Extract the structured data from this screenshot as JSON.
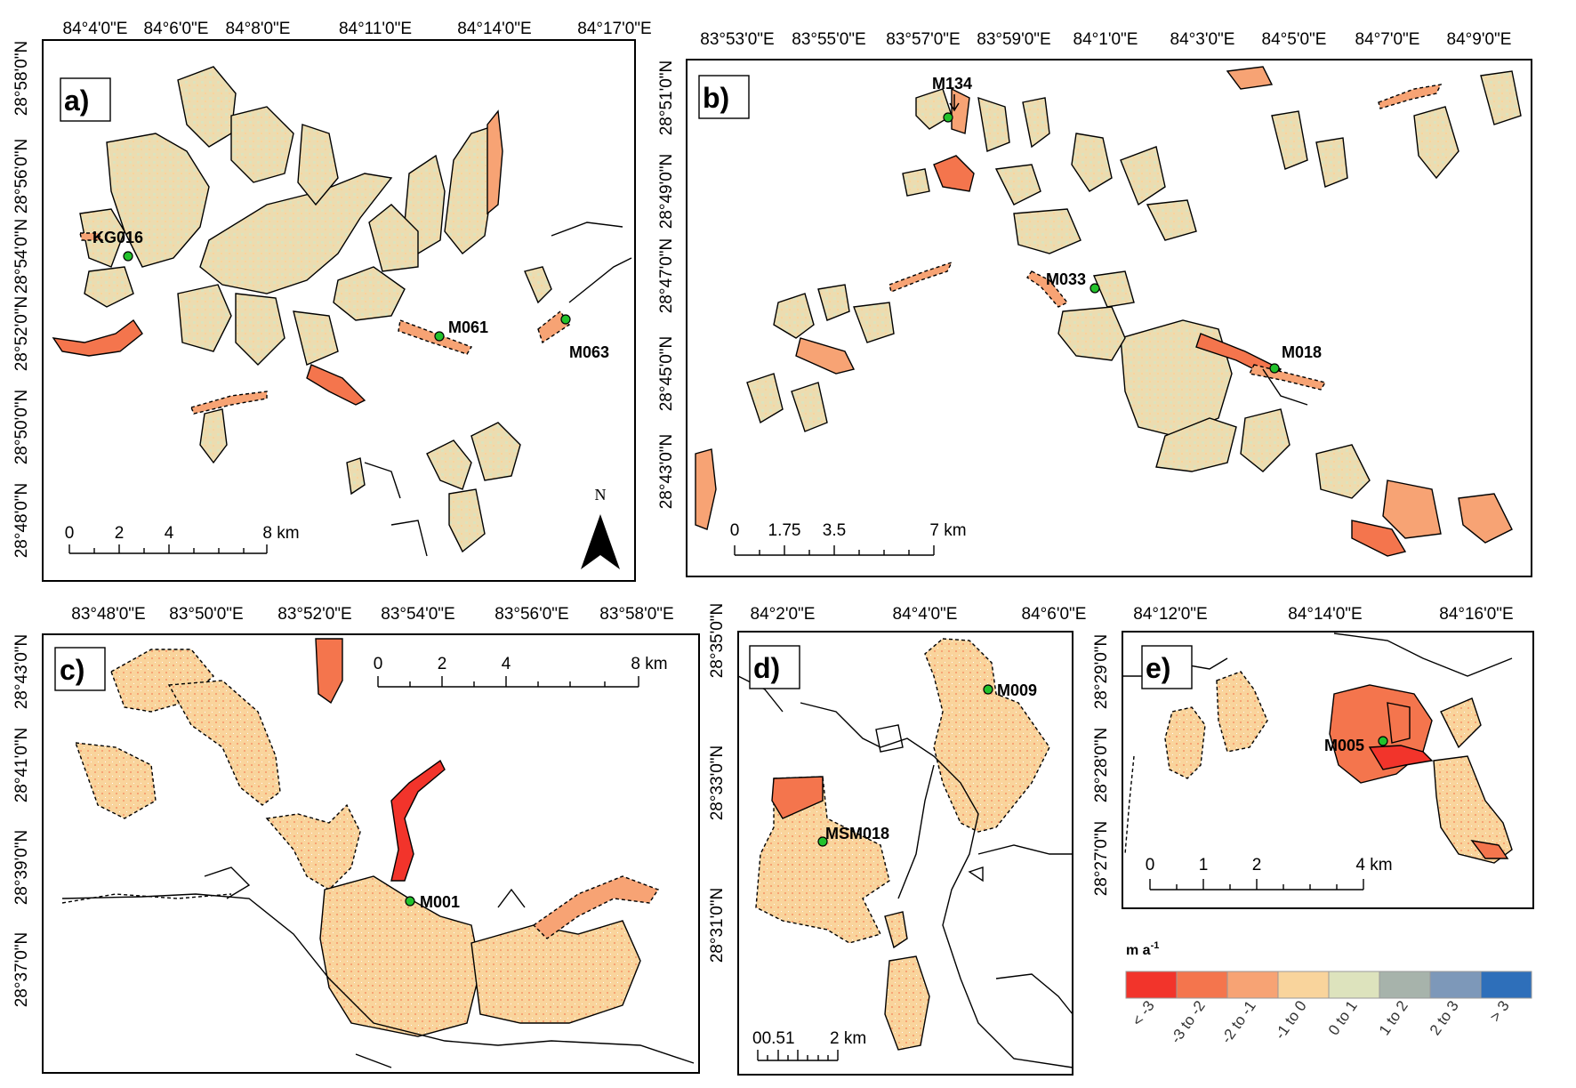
{
  "colors": {
    "lt_m3": "#f2342b",
    "m3_m2": "#f4754d",
    "m2_m1": "#f7a374",
    "m1_0": "#f9d49c",
    "p0_1": "#dde3bd",
    "p1_2": "#a7b3ab",
    "p2_3": "#7d98b9",
    "gt_3": "#2e6fba"
  },
  "panels": {
    "a": {
      "label": "a)",
      "lon_ticks": [
        "84°4'0\"E",
        "84°6'0\"E",
        "84°8'0\"E",
        "84°11'0\"E",
        "84°14'0\"E",
        "84°17'0\"E"
      ],
      "lat_ticks": [
        "28°58'0\"N",
        "28°56'0\"N",
        "28°54'0\"N",
        "28°52'0\"N",
        "28°50'0\"N",
        "28°48'0\"N"
      ],
      "sites": [
        "KG016",
        "M061",
        "M063"
      ],
      "scale": [
        "0",
        "2",
        "4",
        "8 km"
      ],
      "north": "N"
    },
    "b": {
      "label": "b)",
      "lon_ticks": [
        "83°53'0\"E",
        "83°55'0\"E",
        "83°57'0\"E",
        "83°59'0\"E",
        "84°1'0\"E",
        "84°3'0\"E",
        "84°5'0\"E",
        "84°7'0\"E",
        "84°9'0\"E"
      ],
      "lat_ticks": [
        "28°51'0\"N",
        "28°49'0\"N",
        "28°47'0\"N",
        "28°45'0\"N",
        "28°43'0\"N"
      ],
      "sites": [
        "M134",
        "M033",
        "M018"
      ],
      "scale": [
        "0",
        "1.75",
        "3.5",
        "7 km"
      ]
    },
    "c": {
      "label": "c)",
      "lon_ticks": [
        "83°48'0\"E",
        "83°50'0\"E",
        "83°52'0\"E",
        "83°54'0\"E",
        "83°56'0\"E",
        "83°58'0\"E"
      ],
      "lat_ticks": [
        "28°43'0\"N",
        "28°41'0\"N",
        "28°39'0\"N",
        "28°37'0\"N"
      ],
      "sites": [
        "M001"
      ],
      "scale": [
        "0",
        "2",
        "4",
        "8 km"
      ]
    },
    "d": {
      "label": "d)",
      "lon_ticks": [
        "84°2'0\"E",
        "84°4'0\"E",
        "84°6'0\"E"
      ],
      "lat_ticks": [
        "28°35'0\"N",
        "28°33'0\"N",
        "28°31'0\"N"
      ],
      "sites": [
        "M009",
        "MSM018"
      ],
      "scale": [
        "00.51",
        "2 km"
      ]
    },
    "e": {
      "label": "e)",
      "lon_ticks": [
        "84°12'0\"E",
        "84°14'0\"E",
        "84°16'0\"E"
      ],
      "lat_ticks": [
        "28°29'0\"N",
        "28°28'0\"N",
        "28°27'0\"N"
      ],
      "sites": [
        "M005"
      ],
      "scale": [
        "0",
        "1",
        "2",
        "4 km"
      ]
    }
  },
  "legend": {
    "unit": "m a",
    "unit_sup": "-1",
    "classes": [
      "< -3",
      "-3 to -2",
      "-2 to -1",
      "-1 to 0",
      "0 to 1",
      "1 to 2",
      "2 to 3",
      "> 3"
    ]
  }
}
